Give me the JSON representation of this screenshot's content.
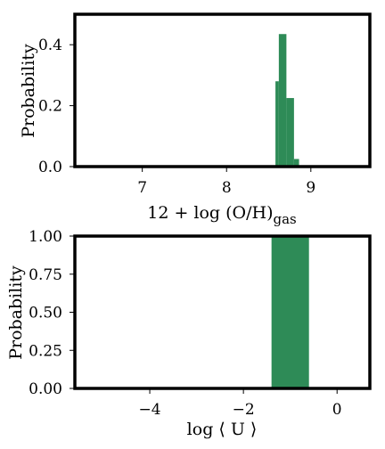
{
  "chart_data": [
    {
      "type": "bar",
      "xlabel_main": "12 + log (O/H)",
      "xlabel_sub": "gas",
      "ylabel": "Probability",
      "xlim": [
        6.2,
        9.7
      ],
      "ylim": [
        0,
        0.5
      ],
      "xticks": [
        7,
        8,
        9
      ],
      "xtick_labels": [
        "7",
        "8",
        "9"
      ],
      "yticks": [
        0.0,
        0.2,
        0.4
      ],
      "ytick_labels": [
        "0.0",
        "0.2",
        "0.4"
      ],
      "grid": false,
      "bar_color": "#2e8b57",
      "bins": [
        {
          "x0": 8.58,
          "x1": 8.62,
          "value": 0.28
        },
        {
          "x0": 8.62,
          "x1": 8.71,
          "value": 0.435
        },
        {
          "x0": 8.71,
          "x1": 8.8,
          "value": 0.225
        },
        {
          "x0": 8.8,
          "x1": 8.86,
          "value": 0.025
        }
      ]
    },
    {
      "type": "bar",
      "xlabel_main": "log ⟨ U ⟩",
      "ylabel": "Probability",
      "xlim": [
        -5.6,
        0.7
      ],
      "ylim": [
        0,
        1.0
      ],
      "xticks": [
        -4,
        -2,
        0
      ],
      "xtick_labels": [
        "−4",
        "−2",
        "0"
      ],
      "yticks": [
        0.0,
        0.25,
        0.5,
        0.75,
        1.0
      ],
      "ytick_labels": [
        "0.00",
        "0.25",
        "0.50",
        "0.75",
        "1.00"
      ],
      "grid": false,
      "bar_color": "#2e8b57",
      "bins": [
        {
          "x0": -1.4,
          "x1": -0.6,
          "value": 1.0
        }
      ]
    }
  ]
}
